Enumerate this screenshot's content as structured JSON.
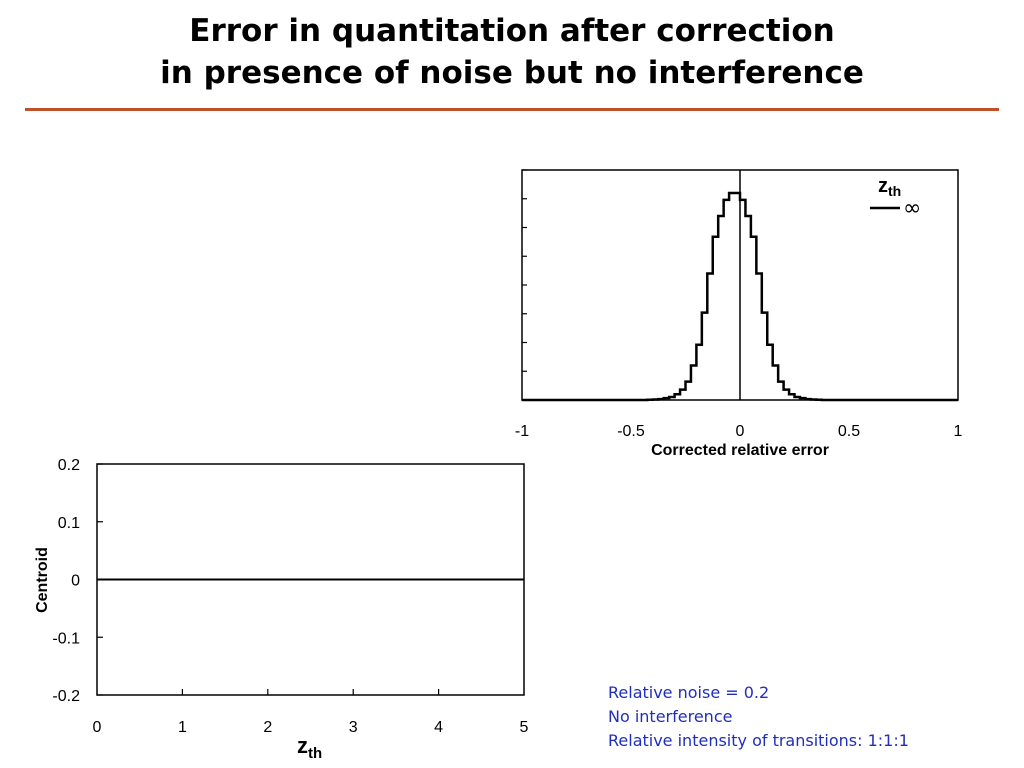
{
  "title": {
    "line1": "Error in quantitation after correction",
    "line2": "in presence of noise but no interference"
  },
  "colors": {
    "title_rule": "#c0502a",
    "note_text": "#1f2fb8",
    "plot_line": "#000000"
  },
  "notes": [
    "Relative noise = 0.2",
    "No interference",
    "Relative intensity of transitions: 1:1:1"
  ],
  "chart_data": [
    {
      "type": "line",
      "subtype": "step-histogram",
      "xlabel": "Corrected relative error",
      "ylabel": "",
      "xlim": [
        -1,
        1
      ],
      "x_ticks": [
        "-1",
        "-0.5",
        "0",
        "0.5",
        "1"
      ],
      "x_tick_values": [
        -1,
        -0.5,
        0,
        0.5,
        1
      ],
      "y_tick_count": 8,
      "reference_line_x": 0,
      "legend": {
        "title_main": "z",
        "title_sub": "th",
        "entries": [
          {
            "label": "∞"
          }
        ],
        "placement": "top-right"
      },
      "series": [
        {
          "name": "∞",
          "bin_width": 0.025,
          "bin_starts": [
            -0.45,
            -0.425,
            -0.4,
            -0.375,
            -0.35,
            -0.325,
            -0.3,
            -0.275,
            -0.25,
            -0.225,
            -0.2,
            -0.175,
            -0.15,
            -0.125,
            -0.1,
            -0.075,
            -0.05,
            -0.025,
            0,
            0.025,
            0.05,
            0.075,
            0.1,
            0.125,
            0.15,
            0.175,
            0.2,
            0.225,
            0.25,
            0.275,
            0.3,
            0.325,
            0.35,
            0.375,
            0.4,
            0.425
          ],
          "values": [
            0,
            0.001,
            0.002,
            0.004,
            0.008,
            0.013,
            0.025,
            0.045,
            0.08,
            0.15,
            0.24,
            0.38,
            0.55,
            0.71,
            0.8,
            0.87,
            0.9,
            0.9,
            0.87,
            0.8,
            0.71,
            0.55,
            0.38,
            0.24,
            0.15,
            0.08,
            0.045,
            0.025,
            0.013,
            0.008,
            0.004,
            0.002,
            0.001,
            0,
            0,
            0
          ]
        }
      ]
    },
    {
      "type": "line",
      "xlabel": "z",
      "xlabel_sub": "th",
      "ylabel": "Centroid",
      "xlim": [
        0,
        5
      ],
      "ylim": [
        -0.2,
        0.2
      ],
      "x_ticks": [
        "0",
        "1",
        "2",
        "3",
        "4",
        "5"
      ],
      "x_tick_values": [
        0,
        1,
        2,
        3,
        4,
        5
      ],
      "y_ticks": [
        "0.2",
        "0.1",
        "0",
        "-0.1",
        "-0.2"
      ],
      "y_tick_values": [
        0.2,
        0.1,
        0,
        -0.1,
        -0.2
      ],
      "series": [
        {
          "x": [
            0,
            5
          ],
          "y": [
            0,
            0
          ]
        }
      ]
    }
  ]
}
